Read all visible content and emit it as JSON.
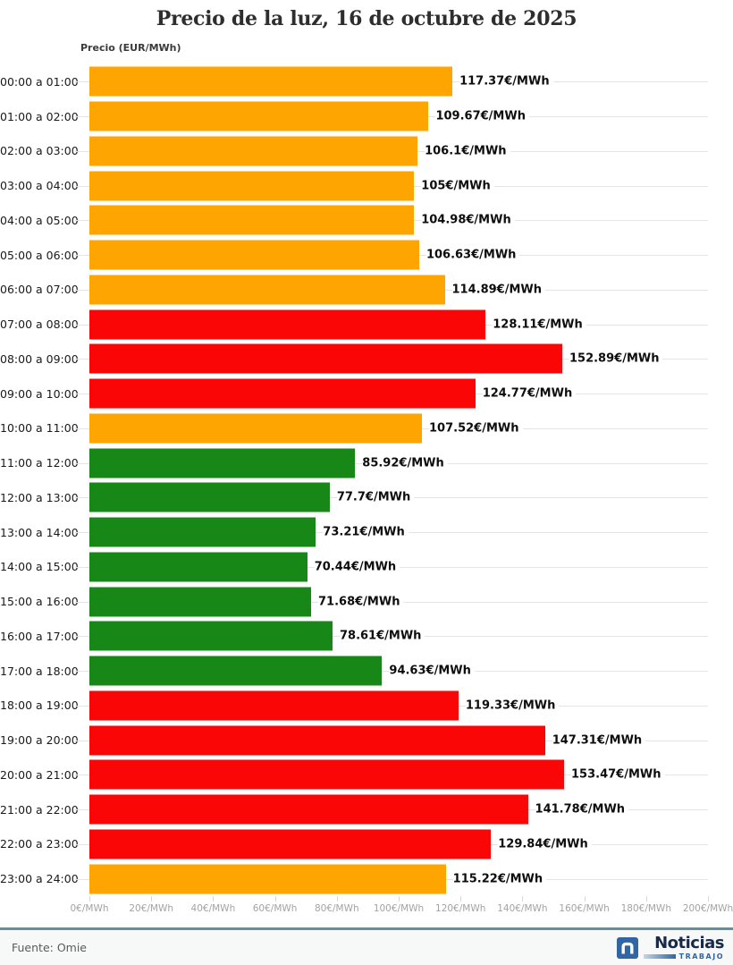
{
  "title": "Precio de la luz, 16 de octubre de 2025",
  "chart_data": {
    "type": "bar",
    "orientation": "horizontal",
    "axis_top_label": "Precio (EUR/MWh)",
    "xlim": [
      0,
      200
    ],
    "grid": "horizontal-row-lines",
    "x_tick_step": 20,
    "x_tick_labels": [
      "0€/MWh",
      "20€/MWh",
      "40€/MWh",
      "60€/MWh",
      "80€/MWh",
      "100€/MWh",
      "120€/MWh",
      "140€/MWh",
      "160€/MWh",
      "180€/MWh",
      "200€/MWh"
    ],
    "categories": [
      "00:00 a 01:00",
      "01:00 a 02:00",
      "02:00 a 03:00",
      "03:00 a 04:00",
      "04:00 a 05:00",
      "05:00 a 06:00",
      "06:00 a 07:00",
      "07:00 a 08:00",
      "08:00 a 09:00",
      "09:00 a 10:00",
      "10:00 a 11:00",
      "11:00 a 12:00",
      "12:00 a 13:00",
      "13:00 a 14:00",
      "14:00 a 15:00",
      "15:00 a 16:00",
      "16:00 a 17:00",
      "17:00 a 18:00",
      "18:00 a 19:00",
      "19:00 a 20:00",
      "20:00 a 21:00",
      "21:00 a 22:00",
      "22:00 a 23:00",
      "23:00 a 24:00"
    ],
    "values": [
      117.37,
      109.67,
      106.1,
      105,
      104.98,
      106.63,
      114.89,
      128.11,
      152.89,
      124.77,
      107.52,
      85.92,
      77.7,
      73.21,
      70.44,
      71.68,
      78.61,
      94.63,
      119.33,
      147.31,
      153.47,
      141.78,
      129.84,
      115.22
    ],
    "value_labels": [
      "117.37€/MWh",
      "109.67€/MWh",
      "106.1€/MWh",
      "105€/MWh",
      "104.98€/MWh",
      "106.63€/MWh",
      "114.89€/MWh",
      "128.11€/MWh",
      "152.89€/MWh",
      "124.77€/MWh",
      "107.52€/MWh",
      "85.92€/MWh",
      "77.7€/MWh",
      "73.21€/MWh",
      "70.44€/MWh",
      "71.68€/MWh",
      "78.61€/MWh",
      "94.63€/MWh",
      "119.33€/MWh",
      "147.31€/MWh",
      "153.47€/MWh",
      "141.78€/MWh",
      "129.84€/MWh",
      "115.22€/MWh"
    ],
    "bar_levels": [
      "orange",
      "orange",
      "orange",
      "orange",
      "orange",
      "orange",
      "orange",
      "red",
      "red",
      "red",
      "orange",
      "green",
      "green",
      "green",
      "green",
      "green",
      "green",
      "green",
      "red",
      "red",
      "red",
      "red",
      "red",
      "orange"
    ]
  },
  "colors": {
    "orange": "#FFA502",
    "red": "#FA0606",
    "green": "#178717",
    "gridline": "#e4e4e4",
    "separator": "#64909e",
    "footer_bg": "#f7f9f8",
    "logo_blue": "#2f66a3",
    "logo_navy": "#18294a"
  },
  "footer": {
    "source": "Fuente: Omie",
    "logo_name": "Noticias",
    "logo_sub": "TRABAJO"
  }
}
